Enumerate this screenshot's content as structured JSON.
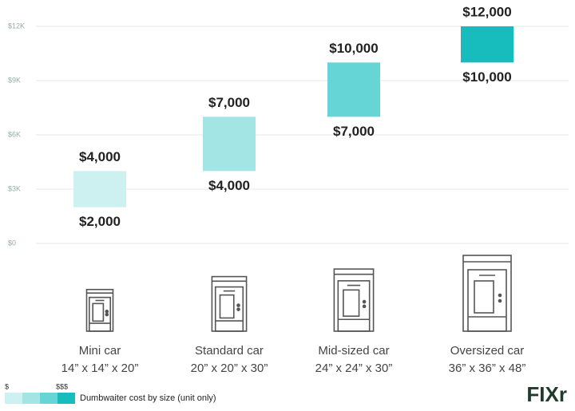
{
  "chart_data": {
    "type": "floating-bar",
    "categories": [
      "Mini car",
      "Standard car",
      "Mid-sized car",
      "Oversized car"
    ],
    "sizes": [
      "14” x 14” x 20”",
      "20” x 20” x 30”",
      "24” x 24” x 30”",
      "36” x 36” x 48”"
    ],
    "low": {
      "values": [
        2000,
        4000,
        7000,
        10000
      ],
      "value_labels": [
        "$2,000",
        "$4,000",
        "$7,000",
        "$10,000"
      ]
    },
    "high": {
      "values": [
        4000,
        7000,
        10000,
        12000
      ],
      "value_labels": [
        "$4,000",
        "$7,000",
        "$10,000",
        "$12,000"
      ]
    },
    "colors": [
      "#cdf0f0",
      "#a3e5e5",
      "#66d5d5",
      "#17bdbd"
    ],
    "ylim": [
      0,
      12000
    ],
    "yticks": [
      {
        "value": 0,
        "label": "$0"
      },
      {
        "value": 3000,
        "label": "$3K"
      },
      {
        "value": 6000,
        "label": "$6K"
      },
      {
        "value": 9000,
        "label": "$9K"
      },
      {
        "value": 12000,
        "label": "$12K"
      }
    ],
    "grid": true,
    "legend": {
      "low_label": "$",
      "high_label": "$$$",
      "text": "Dumbwaiter cost by size (unit only)"
    },
    "logo": "FIXr"
  }
}
